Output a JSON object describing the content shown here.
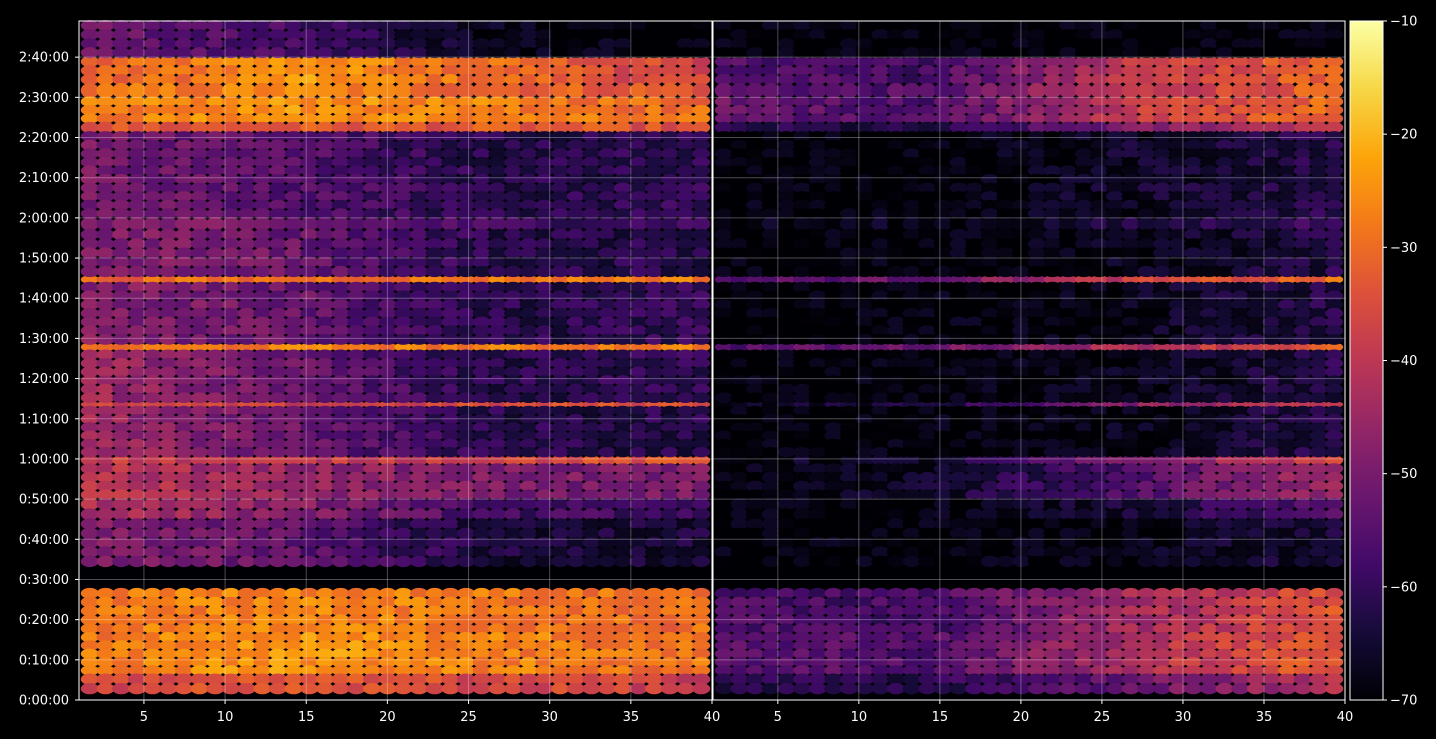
{
  "chart_data": {
    "type": "heatmap",
    "title": "",
    "xlabel": "",
    "ylabel": "",
    "panels": [
      {
        "name": "",
        "x_range": [
          1,
          40
        ],
        "x_ticks": [
          5,
          10,
          15,
          20,
          25,
          30,
          35,
          40
        ],
        "x_tick_labels": [
          "5",
          "10",
          "15",
          "20",
          "25",
          "30",
          "35",
          "40"
        ]
      },
      {
        "name": "",
        "x_range": [
          1,
          40
        ],
        "x_ticks": [
          5,
          10,
          15,
          20,
          25,
          30,
          35,
          40
        ],
        "x_tick_labels": [
          "5",
          "10",
          "15",
          "20",
          "25",
          "30",
          "35",
          "40"
        ]
      }
    ],
    "y_range_seconds": [
      0,
      10140
    ],
    "y_ticks_seconds": [
      0,
      600,
      1200,
      1800,
      2400,
      3000,
      3600,
      4200,
      4800,
      5400,
      6000,
      6600,
      7200,
      7800,
      8400,
      9000,
      9600
    ],
    "y_tick_labels": [
      "0:00:00",
      "0:10:00",
      "0:20:00",
      "0:30:00",
      "0:40:00",
      "0:50:00",
      "1:00:00",
      "1:10:00",
      "1:20:00",
      "1:30:00",
      "1:40:00",
      "1:50:00",
      "2:00:00",
      "2:10:00",
      "2:20:00",
      "2:30:00",
      "2:40:00"
    ],
    "colorbar": {
      "colormap": "inferno",
      "range": [
        -70,
        -10
      ],
      "ticks": [
        -10,
        -20,
        -30,
        -40,
        -50,
        -60,
        -70
      ],
      "tick_labels": [
        "−10",
        "−20",
        "−30",
        "−40",
        "−50",
        "−60",
        "−70"
      ]
    },
    "grid": true,
    "bands_seconds": [
      {
        "y0": 9200,
        "y1": 9600,
        "left": [
          -33,
          -24,
          -30,
          -38
        ],
        "right": [
          -55,
          -58,
          -40,
          -30
        ]
      },
      {
        "y0": 9000,
        "y1": 9200,
        "left": [
          -30,
          -26,
          -31,
          -33
        ],
        "right": [
          -54,
          -56,
          -40,
          -31
        ]
      },
      {
        "y0": 8620,
        "y1": 9000,
        "left": [
          -28,
          -24,
          -27,
          -30
        ],
        "right": [
          -52,
          -56,
          -39,
          -30
        ]
      },
      {
        "y0": 8480,
        "y1": 8620,
        "left": [
          -34,
          -33,
          -33,
          -35
        ],
        "right": [
          -62,
          -64,
          -50,
          -37
        ]
      },
      {
        "y0": 7200,
        "y1": 8480,
        "left": [
          -50,
          -55,
          -62,
          -60
        ],
        "right": [
          -70,
          -70,
          -66,
          -62
        ]
      },
      {
        "y0": 7020,
        "y1": 7200,
        "left": [
          -48,
          -52,
          -58,
          -58
        ],
        "right": [
          -68,
          -68,
          -64,
          -58
        ]
      },
      {
        "y0": 6230,
        "y1": 6330,
        "left": [
          -31,
          -29,
          -28,
          -27
        ],
        "right": [
          -56,
          -52,
          -38,
          -30
        ]
      },
      {
        "y0": 5220,
        "y1": 5320,
        "left": [
          -30,
          -27,
          -28,
          -27
        ],
        "right": [
          -56,
          -52,
          -42,
          -32
        ]
      },
      {
        "y0": 4380,
        "y1": 4450,
        "left": [
          -38,
          -38,
          -36,
          -34
        ],
        "right": [
          -66,
          -64,
          -48,
          -36
        ]
      },
      {
        "y0": 4450,
        "y1": 5220,
        "left": [
          -44,
          -52,
          -62,
          -60
        ],
        "right": [
          -70,
          -70,
          -68,
          -62
        ]
      },
      {
        "y0": 3520,
        "y1": 3640,
        "left": [
          -38,
          -40,
          -36,
          -34
        ],
        "right": [
          -68,
          -66,
          -50,
          -36
        ]
      },
      {
        "y0": 3000,
        "y1": 3520,
        "left": [
          -40,
          -46,
          -50,
          -50
        ],
        "right": [
          -70,
          -66,
          -56,
          -44
        ]
      },
      {
        "y0": 2700,
        "y1": 3000,
        "left": [
          -42,
          -48,
          -58,
          -58
        ],
        "right": [
          -70,
          -70,
          -64,
          -56
        ]
      },
      {
        "y0": 3640,
        "y1": 4380,
        "left": [
          -44,
          -52,
          -62,
          -62
        ],
        "right": [
          -70,
          -70,
          -68,
          -62
        ]
      },
      {
        "y0": 2000,
        "y1": 2700,
        "left": [
          -48,
          -54,
          -64,
          -64
        ],
        "right": [
          -70,
          -70,
          -68,
          -64
        ]
      },
      {
        "y0": 1000,
        "y1": 1660,
        "left": [
          -28,
          -26,
          -28,
          -30
        ],
        "right": [
          -56,
          -58,
          -44,
          -34
        ]
      },
      {
        "y0": 380,
        "y1": 1000,
        "left": [
          -28,
          -24,
          -27,
          -29
        ],
        "right": [
          -54,
          -56,
          -42,
          -32
        ]
      },
      {
        "y0": 100,
        "y1": 380,
        "left": [
          -36,
          -34,
          -36,
          -38
        ],
        "right": [
          -62,
          -62,
          -52,
          -42
        ]
      },
      {
        "y0": 6330,
        "y1": 7020,
        "left": [
          -48,
          -52,
          -62,
          -62
        ],
        "right": [
          -70,
          -70,
          -68,
          -62
        ]
      },
      {
        "y0": 5320,
        "y1": 6230,
        "left": [
          -48,
          -52,
          -62,
          -60
        ],
        "right": [
          -70,
          -70,
          -68,
          -62
        ]
      },
      {
        "y0": 9600,
        "y1": 10140,
        "left": [
          -52,
          -58,
          -68,
          -70
        ],
        "right": [
          -70,
          -70,
          -70,
          -70
        ]
      }
    ]
  }
}
